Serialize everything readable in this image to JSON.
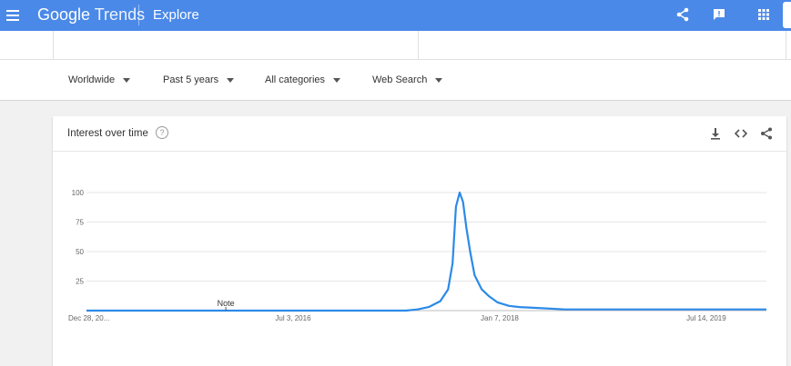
{
  "topbar": {
    "logo_google": "Google",
    "logo_trends": "Trends",
    "page_label": "Explore",
    "icons": [
      "menu-icon",
      "share-icon",
      "feedback-icon",
      "apps-icon"
    ]
  },
  "filters": {
    "region": "Worldwide",
    "time": "Past 5 years",
    "category": "All categories",
    "search_type": "Web Search"
  },
  "card": {
    "title": "Interest over time",
    "help_glyph": "?",
    "icons": [
      "download-icon",
      "embed-icon",
      "share-icon"
    ]
  },
  "chart_data": {
    "type": "line",
    "title": "Interest over time",
    "xlabel": "",
    "ylabel": "",
    "ylim": [
      0,
      100
    ],
    "y_ticks": [
      100,
      75,
      50,
      25
    ],
    "x_tick_labels": [
      "Dec 28, 20...",
      "Jul 3, 2016",
      "Jan 7, 2018",
      "Jul 14, 2019"
    ],
    "x_range": [
      "2014-12-28",
      "2019-12-22"
    ],
    "grid": true,
    "annotation": "Note",
    "series": [
      {
        "color": "#2c8ae8",
        "points": [
          [
            "2014-12-28",
            0
          ],
          [
            "2016-01-01",
            0
          ],
          [
            "2017-01-01",
            0
          ],
          [
            "2017-05-01",
            0
          ],
          [
            "2017-06-01",
            1
          ],
          [
            "2017-07-01",
            3
          ],
          [
            "2017-08-01",
            8
          ],
          [
            "2017-08-22",
            18
          ],
          [
            "2017-09-03",
            40
          ],
          [
            "2017-09-12",
            88
          ],
          [
            "2017-09-22",
            100
          ],
          [
            "2017-10-01",
            92
          ],
          [
            "2017-10-10",
            70
          ],
          [
            "2017-10-20",
            50
          ],
          [
            "2017-11-01",
            30
          ],
          [
            "2017-11-20",
            18
          ],
          [
            "2017-12-10",
            12
          ],
          [
            "2018-01-01",
            7
          ],
          [
            "2018-02-01",
            4
          ],
          [
            "2018-03-01",
            3
          ],
          [
            "2018-05-01",
            2
          ],
          [
            "2018-07-01",
            1
          ],
          [
            "2018-10-01",
            1
          ],
          [
            "2019-01-01",
            1
          ],
          [
            "2019-07-01",
            1
          ],
          [
            "2019-12-22",
            1
          ]
        ]
      }
    ]
  }
}
